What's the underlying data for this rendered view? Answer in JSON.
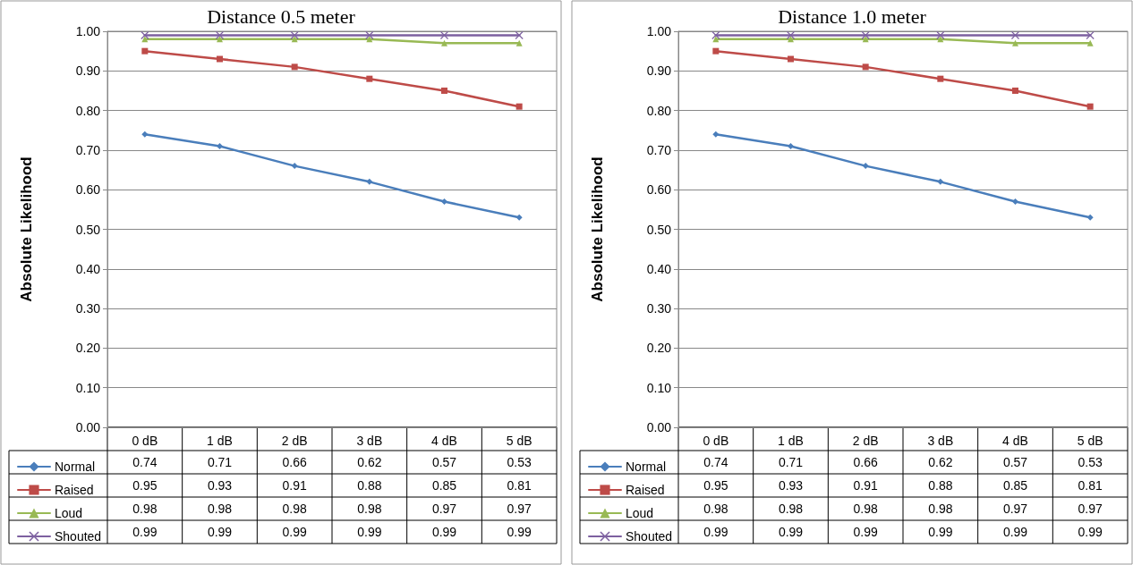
{
  "chart_data": [
    {
      "type": "line",
      "title": "Distance 0.5 meter",
      "ylabel": "Absolute Likelihood",
      "categories": [
        "0 dB",
        "1 dB",
        "2 dB",
        "3 dB",
        "4 dB",
        "5 dB"
      ],
      "series": [
        {
          "name": "Normal",
          "color": "#4a7ebb",
          "marker": "diamond",
          "values": [
            0.74,
            0.71,
            0.66,
            0.62,
            0.57,
            0.53
          ]
        },
        {
          "name": "Raised",
          "color": "#be4b48",
          "marker": "square",
          "values": [
            0.95,
            0.93,
            0.91,
            0.88,
            0.85,
            0.81
          ]
        },
        {
          "name": "Loud",
          "color": "#98b954",
          "marker": "triangle",
          "values": [
            0.98,
            0.98,
            0.98,
            0.98,
            0.97,
            0.97
          ]
        },
        {
          "name": "Shouted",
          "color": "#7d60a0",
          "marker": "cross",
          "values": [
            0.99,
            0.99,
            0.99,
            0.99,
            0.99,
            0.99
          ]
        }
      ],
      "ylim": [
        0,
        1
      ],
      "yticks": [
        {
          "value": 0,
          "label": "0.00"
        },
        {
          "value": 0.1,
          "label": "0.10"
        },
        {
          "value": 0.2,
          "label": "0.20"
        },
        {
          "value": 0.3,
          "label": "0.30"
        },
        {
          "value": 0.4,
          "label": "0.40"
        },
        {
          "value": 0.5,
          "label": "0.50"
        },
        {
          "value": 0.6,
          "label": "0.60"
        },
        {
          "value": 0.7,
          "label": "0.70"
        },
        {
          "value": 0.8,
          "label": "0.80"
        },
        {
          "value": 0.9,
          "label": "0.90"
        },
        {
          "value": 1,
          "label": "1.00"
        }
      ],
      "grid": "y",
      "legend": "bottom",
      "data_labels": true
    },
    {
      "type": "line",
      "title": "Distance 1.0 meter",
      "ylabel": "Absolute Likelihood",
      "categories": [
        "0 dB",
        "1 dB",
        "2 dB",
        "3 dB",
        "4 dB",
        "5 dB"
      ],
      "series": [
        {
          "name": "Normal",
          "color": "#4a7ebb",
          "marker": "diamond",
          "values": [
            0.74,
            0.71,
            0.66,
            0.62,
            0.57,
            0.53
          ]
        },
        {
          "name": "Raised",
          "color": "#be4b48",
          "marker": "square",
          "values": [
            0.95,
            0.93,
            0.91,
            0.88,
            0.85,
            0.81
          ]
        },
        {
          "name": "Loud",
          "color": "#98b954",
          "marker": "triangle",
          "values": [
            0.98,
            0.98,
            0.98,
            0.98,
            0.97,
            0.97
          ]
        },
        {
          "name": "Shouted",
          "color": "#7d60a0",
          "marker": "cross",
          "values": [
            0.99,
            0.99,
            0.99,
            0.99,
            0.99,
            0.99
          ]
        }
      ],
      "ylim": [
        0,
        1
      ],
      "yticks": [
        {
          "value": 0,
          "label": "0.00"
        },
        {
          "value": 0.1,
          "label": "0.10"
        },
        {
          "value": 0.2,
          "label": "0.20"
        },
        {
          "value": 0.3,
          "label": "0.30"
        },
        {
          "value": 0.4,
          "label": "0.40"
        },
        {
          "value": 0.5,
          "label": "0.50"
        },
        {
          "value": 0.6,
          "label": "0.60"
        },
        {
          "value": 0.7,
          "label": "0.70"
        },
        {
          "value": 0.8,
          "label": "0.80"
        },
        {
          "value": 0.9,
          "label": "0.90"
        },
        {
          "value": 1,
          "label": "1.00"
        }
      ],
      "grid": "y",
      "legend": "bottom",
      "data_labels": true
    }
  ]
}
